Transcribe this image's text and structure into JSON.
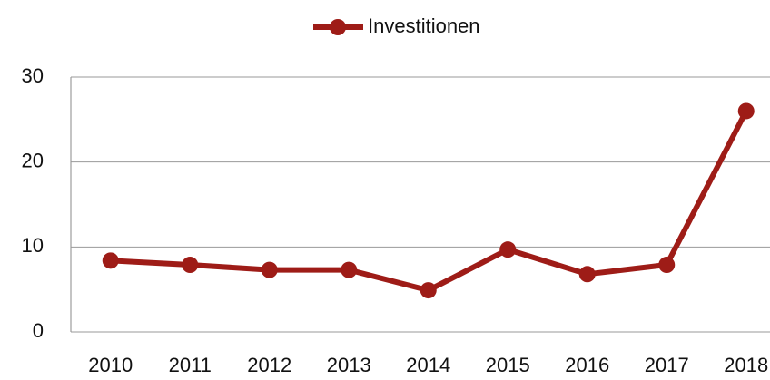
{
  "chart_data": {
    "type": "line",
    "categories": [
      "2010",
      "2011",
      "2012",
      "2013",
      "2014",
      "2015",
      "2016",
      "2017",
      "2018"
    ],
    "series": [
      {
        "name": "Investitionen",
        "color": "#9e1c17",
        "values": [
          8.4,
          7.9,
          7.3,
          7.3,
          4.9,
          9.7,
          6.8,
          7.9,
          26.0
        ]
      }
    ],
    "ylim": [
      0,
      30
    ],
    "yticks": [
      0,
      10,
      20,
      30
    ],
    "grid": true,
    "legend": "top"
  }
}
